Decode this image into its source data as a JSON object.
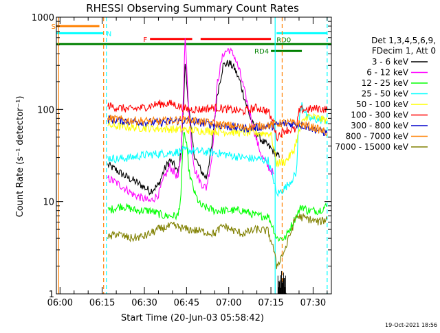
{
  "chart_data": {
    "type": "line",
    "title": "RHESSI Observing Summary Count Rates",
    "xlabel": "Start Time (20-Jun-03 05:58:42)",
    "ylabel": "Count Rate (s⁻¹ detector⁻¹)",
    "yscale": "log",
    "ylim": [
      1,
      1000
    ],
    "xlim_minutes": [
      -1.3,
      96.5
    ],
    "x_ticks": [
      {
        "m": 0,
        "label": "06:00"
      },
      {
        "m": 15,
        "label": "06:15"
      },
      {
        "m": 30,
        "label": "06:30"
      },
      {
        "m": 45,
        "label": "06:45"
      },
      {
        "m": 60,
        "label": "07:00"
      },
      {
        "m": 75,
        "label": "07:15"
      },
      {
        "m": 90,
        "label": "07:30"
      }
    ],
    "y_ticks": [
      {
        "v": 1,
        "label": "1"
      },
      {
        "v": 10,
        "label": "10"
      },
      {
        "v": 100,
        "label": "100"
      },
      {
        "v": 1000,
        "label": "1000"
      }
    ],
    "legend_header": [
      "Det 1,3,4,5,6,9,",
      "FDecim 1, Att 0"
    ],
    "series": [
      {
        "name": "3 - 6 keV",
        "color": "#000000",
        "x": [
          17,
          20,
          23,
          26,
          29,
          32,
          35,
          37,
          39,
          41,
          42,
          43,
          44,
          44.5,
          45,
          46,
          47,
          48,
          50,
          52,
          54,
          56,
          58,
          60,
          62,
          64,
          66,
          68,
          70,
          72,
          74,
          76,
          78
        ],
        "values": [
          25,
          22,
          19,
          17,
          15,
          13,
          15,
          22,
          28,
          24,
          20,
          35,
          120,
          330,
          200,
          90,
          45,
          30,
          22,
          18,
          40,
          150,
          300,
          320,
          280,
          200,
          120,
          75,
          55,
          45,
          40,
          35,
          30
        ]
      },
      {
        "name": "6 - 12 keV",
        "color": "#ff00ff",
        "x": [
          17,
          20,
          23,
          26,
          29,
          32,
          35,
          37,
          39,
          41,
          42,
          43,
          44,
          44.5,
          45,
          46,
          47,
          48,
          50,
          52,
          54,
          56,
          58,
          60,
          62,
          64,
          66,
          68,
          70,
          72,
          74,
          76
        ],
        "values": [
          18,
          16,
          14,
          12,
          11,
          10,
          12,
          18,
          24,
          20,
          18,
          30,
          200,
          600,
          300,
          80,
          35,
          22,
          16,
          14,
          30,
          200,
          400,
          450,
          380,
          250,
          140,
          80,
          45,
          30,
          24,
          20
        ]
      },
      {
        "name": "12 - 25 keV",
        "color": "#00ff00",
        "x": [
          17,
          22,
          27,
          32,
          37,
          42,
          43,
          44,
          45,
          46,
          48,
          50,
          55,
          60,
          65,
          70,
          74,
          76,
          77,
          80,
          84,
          86,
          88,
          92,
          95
        ],
        "values": [
          8,
          9,
          8,
          8,
          7,
          7,
          12,
          60,
          40,
          20,
          12,
          9,
          8,
          8,
          8,
          7,
          7,
          5,
          4,
          4,
          7,
          9,
          8,
          8,
          9
        ]
      },
      {
        "name": "25 - 50 keV",
        "color": "#00ffff",
        "x": [
          17,
          20,
          25,
          30,
          35,
          40,
          45,
          50,
          55,
          60,
          65,
          70,
          74,
          76,
          77,
          80,
          84,
          85,
          86,
          87,
          88,
          91,
          95
        ],
        "values": [
          30,
          29,
          30,
          32,
          33,
          34,
          36,
          35,
          34,
          32,
          30,
          29,
          28,
          17,
          12,
          14,
          20,
          75,
          120,
          95,
          80,
          78,
          75
        ]
      },
      {
        "name": "50 - 100 keV",
        "color": "#ffff00",
        "x": [
          17,
          25,
          35,
          45,
          55,
          65,
          75,
          77,
          80,
          83,
          84,
          86,
          88,
          92,
          95
        ],
        "values": [
          67,
          64,
          62,
          60,
          58,
          56,
          55,
          26,
          27,
          35,
          45,
          70,
          85,
          80,
          75
        ]
      },
      {
        "name": "100 - 300 keV",
        "color": "#ff0000",
        "x": [
          17,
          20,
          25,
          30,
          35,
          40,
          45,
          50,
          55,
          60,
          65,
          70,
          74,
          76,
          77,
          80,
          84,
          85,
          86,
          88,
          92,
          95
        ],
        "values": [
          110,
          105,
          100,
          105,
          115,
          115,
          100,
          100,
          105,
          100,
          95,
          105,
          95,
          70,
          50,
          60,
          60,
          95,
          100,
          100,
          102,
          100
        ]
      },
      {
        "name": "300 - 800 keV",
        "color": "#0000cc",
        "x": [
          17,
          25,
          35,
          45,
          55,
          65,
          75,
          80,
          85,
          90,
          95
        ],
        "values": [
          78,
          74,
          72,
          76,
          68,
          62,
          66,
          70,
          69,
          62,
          55
        ]
      },
      {
        "name": "800 - 7000 keV",
        "color": "#ff8000",
        "x": [
          17,
          25,
          35,
          45,
          55,
          65,
          75,
          80,
          85,
          90,
          95
        ],
        "values": [
          80,
          76,
          74,
          78,
          70,
          64,
          68,
          72,
          70,
          64,
          56
        ]
      },
      {
        "name": "7000 - 15000 keV",
        "color": "#808000",
        "x": [
          17,
          20,
          25,
          30,
          35,
          40,
          45,
          50,
          55,
          58,
          62,
          65,
          70,
          74,
          76,
          77,
          80,
          84,
          88,
          92,
          95
        ],
        "values": [
          4,
          4.5,
          4,
          4.2,
          5,
          5.5,
          5,
          4.8,
          4.5,
          5.5,
          4.8,
          4.5,
          5,
          4.8,
          3,
          2,
          3,
          7,
          6.5,
          6,
          6.5
        ]
      }
    ],
    "annotations": {
      "flags": [
        {
          "code": "S",
          "color": "#ff8000",
          "x1": -1.3,
          "x2": 14,
          "value": 800
        },
        {
          "code": "N",
          "color": "#00ffff",
          "x1": -1.3,
          "x2": 15.5,
          "value": 670
        },
        {
          "code": "N",
          "color": "#00ffff",
          "x1": 77,
          "x2": 95,
          "value": 670
        },
        {
          "code": "F",
          "color": "#ff0000",
          "x1": 32,
          "x2": 47,
          "value": 580
        },
        {
          "code": "F",
          "color": "#ff0000",
          "x1": 50,
          "x2": 75,
          "value": 580
        },
        {
          "code": "RD0",
          "color": "#008000",
          "x1": -1.3,
          "x2": 96.5,
          "value": 510
        },
        {
          "code": "RD4",
          "color": "#008000",
          "x1": 75,
          "x2": 86,
          "value": 430
        }
      ],
      "vlines": [
        {
          "m": -0.5,
          "color": "#ff8000",
          "dash": false
        },
        {
          "m": 15.5,
          "color": "#ff8000",
          "dash": true
        },
        {
          "m": 16.5,
          "color": "#00ffff",
          "dash": true
        },
        {
          "m": 76.5,
          "color": "#00ffff",
          "dash": false
        },
        {
          "m": 79,
          "color": "#ff8000",
          "dash": true
        },
        {
          "m": 95,
          "color": "#00ffff",
          "dash": true
        }
      ],
      "noise_bursts": [
        {
          "color": "#000000",
          "x1": 77.5,
          "x2": 80.5,
          "low": 1,
          "high": 2
        }
      ]
    },
    "footer_date": "19-Oct-2021 18:56"
  }
}
